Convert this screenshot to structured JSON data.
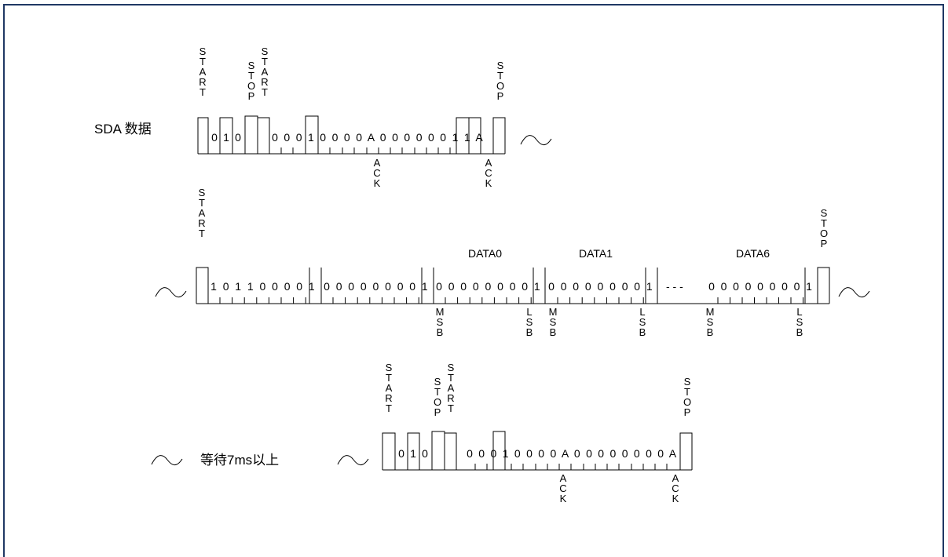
{
  "frame_color": "#1f3864",
  "labels": {
    "sda": "SDA 数据",
    "wait": "等待7ms以上",
    "data0": "DATA0",
    "data1": "DATA1",
    "data6": "DATA6",
    "dash": "- - -"
  },
  "vertical_labels": {
    "start": "START",
    "stop": "STOP",
    "ack": "ACK",
    "msb": "MSB",
    "lsb": "LSB"
  },
  "bits": {
    "row1_a": [
      "0",
      "1",
      "0"
    ],
    "row1_b": [
      "0",
      "0",
      "0",
      "1",
      "0",
      "0",
      "0",
      "0",
      "A",
      "0",
      "0",
      "0",
      "0",
      "0",
      "0",
      "1",
      "1",
      "A"
    ],
    "row2_addr": [
      "1",
      "0",
      "1",
      "1",
      "0",
      "0",
      "0",
      "0",
      "1"
    ],
    "row2_zeros": [
      "0",
      "0",
      "0",
      "0",
      "0",
      "0",
      "0",
      "0",
      "1"
    ],
    "row2_data": [
      "0",
      "0",
      "0",
      "0",
      "0",
      "0",
      "0",
      "0",
      "1"
    ],
    "row3_a": [
      "0",
      "1",
      "0"
    ],
    "row3_b": [
      "0",
      "0",
      "0",
      "1",
      "0",
      "0",
      "0",
      "0",
      "A",
      "0",
      "0",
      "0",
      "0",
      "0",
      "0",
      "0",
      "0",
      "A"
    ]
  },
  "wave_symbol": "∼"
}
